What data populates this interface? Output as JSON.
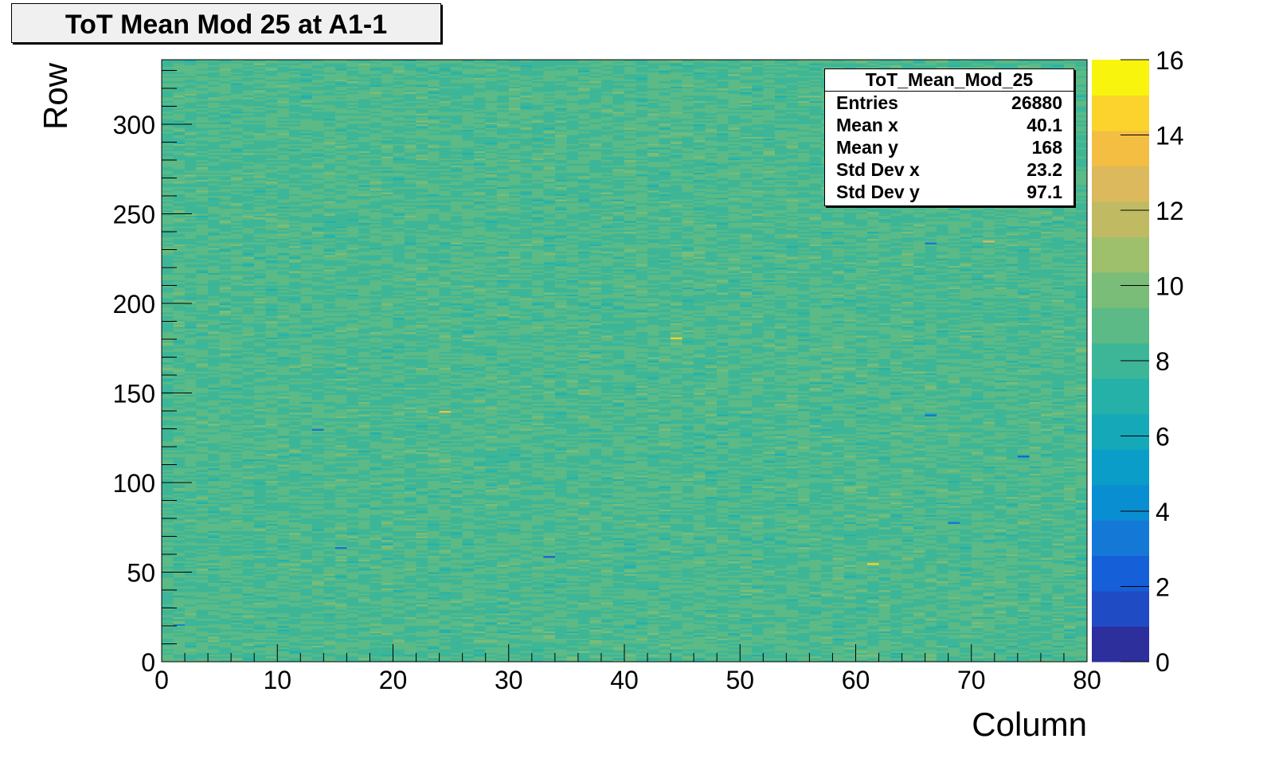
{
  "title": "ToT Mean Mod 25 at A1-1",
  "stats": {
    "name": "ToT_Mean_Mod_25",
    "rows": [
      {
        "key": "Entries",
        "value": "26880"
      },
      {
        "key": "Mean x",
        "value": "40.1"
      },
      {
        "key": "Mean y",
        "value": "168"
      },
      {
        "key": "Std Dev x",
        "value": "23.2"
      },
      {
        "key": "Std Dev y",
        "value": "97.1"
      }
    ]
  },
  "chart_data": {
    "type": "heatmap",
    "title": "ToT Mean Mod 25 at A1-1",
    "xlabel": "Column",
    "ylabel": "Row",
    "xlim": [
      0,
      80
    ],
    "ylim": [
      0,
      336
    ],
    "zlim": [
      0,
      16
    ],
    "x_ticks": [
      0,
      10,
      20,
      30,
      40,
      50,
      60,
      70,
      80
    ],
    "y_ticks": [
      0,
      50,
      100,
      150,
      200,
      250,
      300
    ],
    "z_ticks": [
      0,
      2,
      4,
      6,
      8,
      10,
      12,
      14,
      16
    ],
    "nx": 80,
    "ny": 336,
    "typical_value_range": [
      7,
      10
    ],
    "outlier_cells": [
      {
        "x": 1,
        "y": 20,
        "value": 4
      },
      {
        "x": 13,
        "y": 129,
        "value": 3
      },
      {
        "x": 15,
        "y": 63,
        "value": 3
      },
      {
        "x": 24,
        "y": 139,
        "value": 14
      },
      {
        "x": 33,
        "y": 58,
        "value": 2
      },
      {
        "x": 44,
        "y": 180,
        "value": 15
      },
      {
        "x": 61,
        "y": 54,
        "value": 15
      },
      {
        "x": 66,
        "y": 137,
        "value": 3
      },
      {
        "x": 66,
        "y": 233,
        "value": 3
      },
      {
        "x": 68,
        "y": 77,
        "value": 3
      },
      {
        "x": 71,
        "y": 234,
        "value": 13
      },
      {
        "x": 74,
        "y": 114,
        "value": 2
      }
    ],
    "palette": [
      "#2d2f9d",
      "#1f4cc4",
      "#1560d8",
      "#1479d6",
      "#0a8ed2",
      "#0a9dc8",
      "#15a8b9",
      "#25b1a8",
      "#3db697",
      "#5bba86",
      "#7abd78",
      "#9ebf6c",
      "#c0bb63",
      "#dbb95c",
      "#f4be43",
      "#fbd32c",
      "#f9f40e"
    ]
  }
}
